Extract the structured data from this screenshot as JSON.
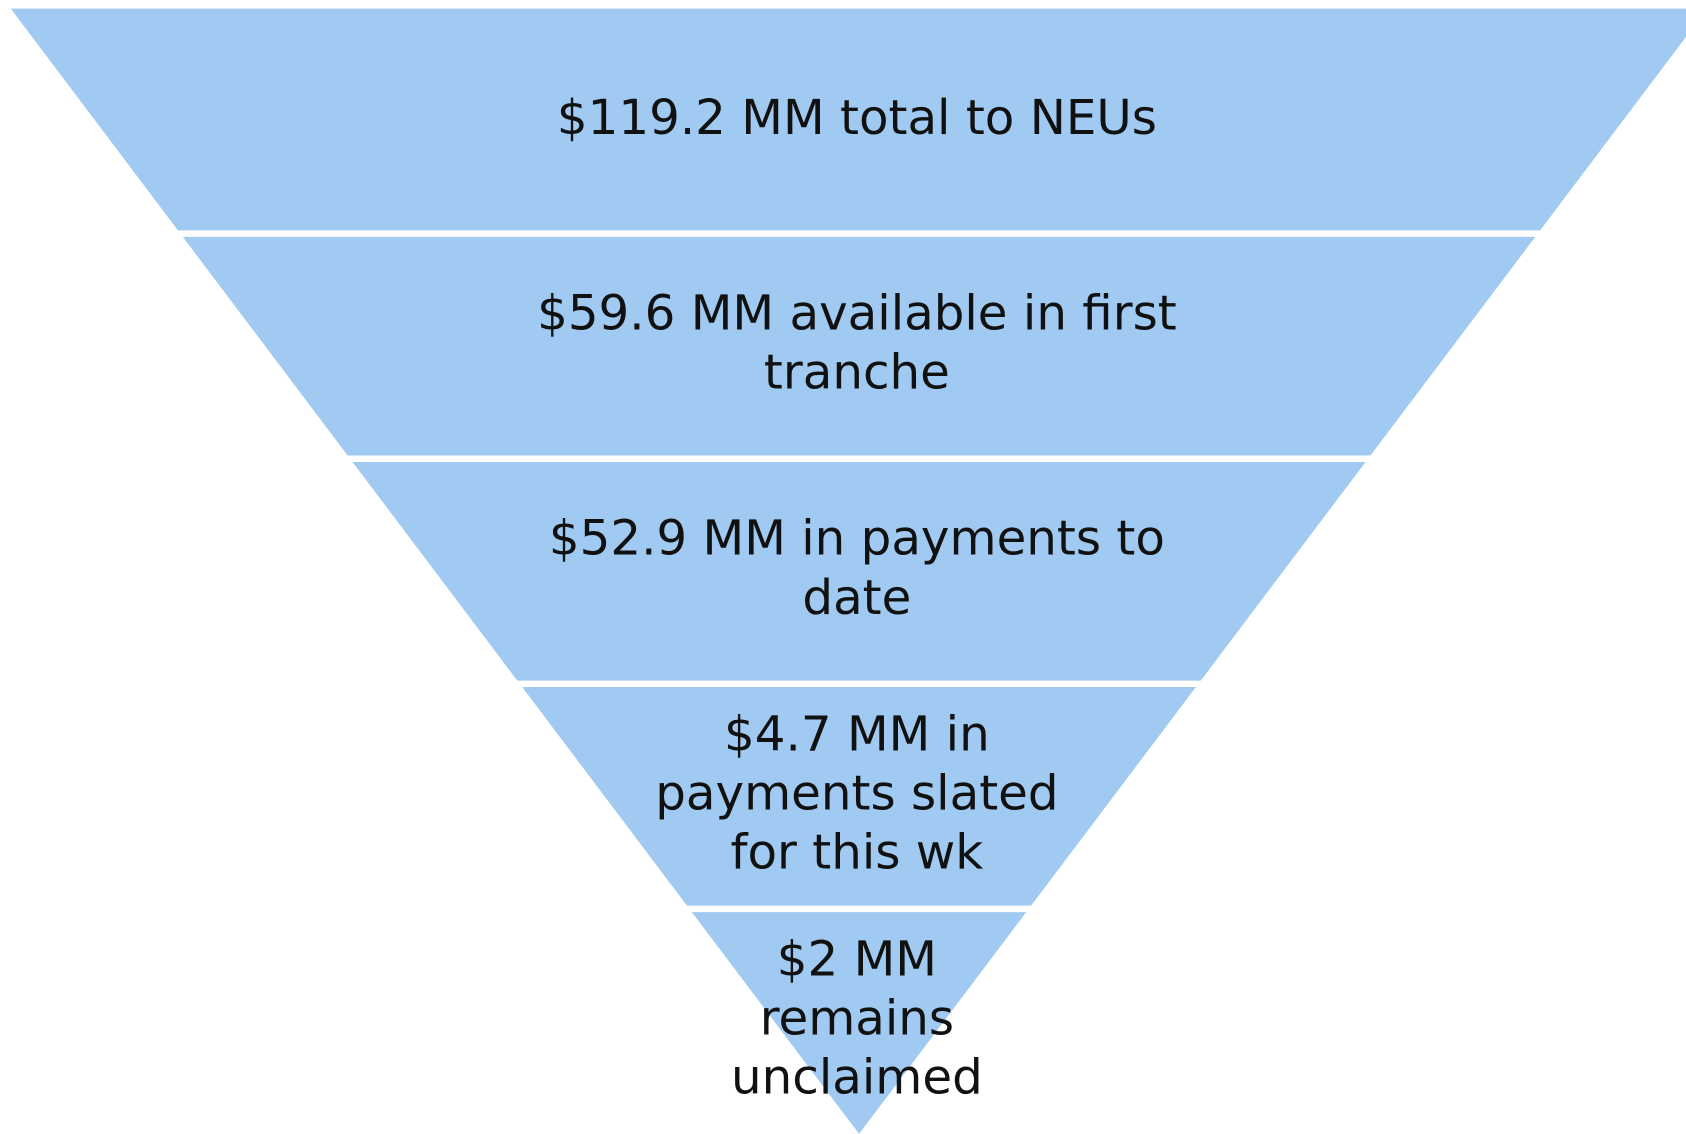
{
  "levels": [
    {
      "lines": [
        "$119.2 MM total to NEUs"
      ]
    },
    {
      "lines": [
        "$59.6 MM available in first",
        "tranche"
      ]
    },
    {
      "lines": [
        "$52.9 MM in payments to",
        "date"
      ]
    },
    {
      "lines": [
        "$4.7 MM in",
        "payments slated",
        "for this wk"
      ]
    },
    {
      "lines": [
        "$2 MM",
        "remains",
        "unclaimed"
      ]
    }
  ]
}
